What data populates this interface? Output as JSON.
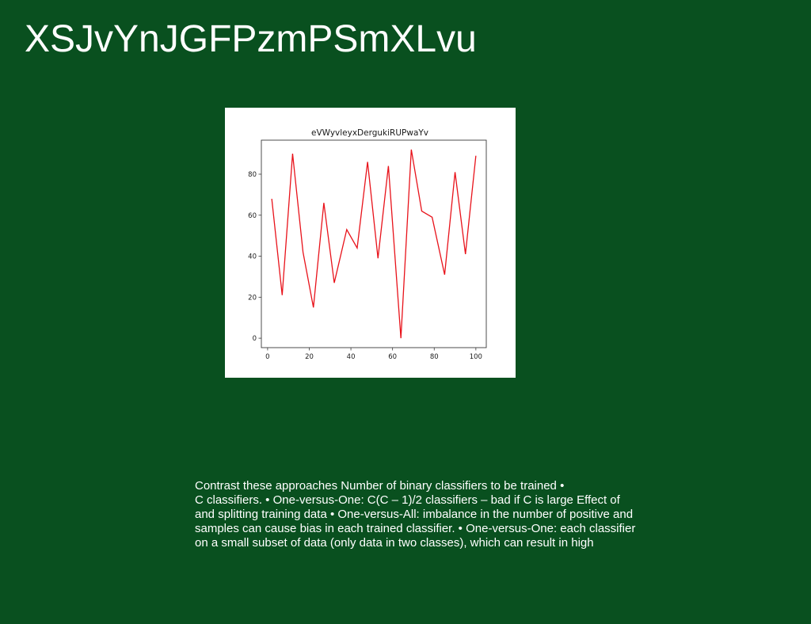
{
  "slide": {
    "title": "XSJvYnJGFPzmPSmXLvu",
    "body_lines": [
      "Contrast these approaches Number of binary classifiers to be trained •",
      "C classifiers. • One-versus-One: C(C – 1)/2 classifiers – bad if C is large Effect of",
      "and splitting training data • One-versus-All: imbalance in the number of positive and",
      "samples can cause bias in each trained classifier. • One-versus-One: each classifier",
      "on a small subset of data (only data in two classes), which can result in high"
    ]
  },
  "chart_data": {
    "type": "line",
    "title": "eVWyvleyxDergukiRUPwaYv",
    "xlabel": "",
    "ylabel": "",
    "x": [
      2,
      7,
      12,
      17,
      22,
      27,
      32,
      38,
      43,
      48,
      53,
      58,
      64,
      69,
      74,
      79,
      85,
      90,
      95,
      100
    ],
    "series": [
      {
        "values": [
          68,
          21,
          90,
          42,
          15,
          66,
          27,
          53,
          44,
          86,
          39,
          84,
          0,
          92,
          62,
          59,
          31,
          81,
          41,
          89
        ],
        "color": "#e8121a"
      }
    ],
    "xlim": [
      -3,
      105
    ],
    "ylim": [
      -4.6,
      96.6
    ],
    "xticks": [
      0,
      20,
      40,
      60,
      80,
      100
    ],
    "yticks": [
      0,
      20,
      40,
      60,
      80
    ],
    "grid": false,
    "legend": "none"
  }
}
